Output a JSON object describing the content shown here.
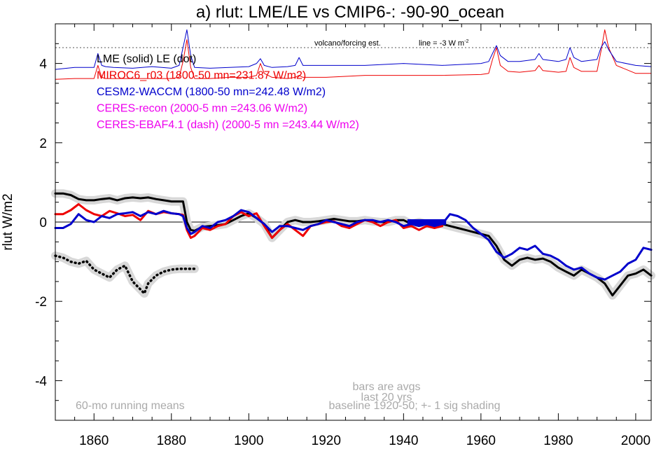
{
  "chart_data": {
    "type": "line",
    "title": "a) rlut: LME/LE vs CMIP6-: -90-90_ocean",
    "xlabel": "",
    "ylabel": "rlut W/m2",
    "xlim": [
      1850,
      2004
    ],
    "ylim": [
      -5,
      5
    ],
    "x_ticks": [
      "1860",
      "1880",
      "1900",
      "1920",
      "1940",
      "1960",
      "1980",
      "2000"
    ],
    "y_ticks": [
      "4",
      "2",
      "0",
      "-2",
      "-4"
    ],
    "zero_line": 0,
    "legend": [
      {
        "text": "LME (solid)   LE (dot)",
        "color": "#000000"
      },
      {
        "text": "MIROC6_r03 (1800-50 mn=231.87 W/m2)",
        "color": "#ee0000"
      },
      {
        "text": "CESM2-WACCM (1800-50 mn=242.48 W/m2)",
        "color": "#0000cc"
      },
      {
        "text": "CERES-recon (2000-5 mn =243.06 W/m2)",
        "color": "#ee00ee"
      },
      {
        "text": "CERES-EBAF4.1 (dash) (2000-5 mn =243.44 W/m2)",
        "color": "#ee00ee"
      }
    ],
    "annotations": {
      "volcano": "volcano/forcing est.",
      "line_note": "line = -3 W m",
      "line_note_sup": "-2",
      "running_mean": "60-mo running means",
      "bars_line1": "bars are avgs",
      "bars_line2": "last 20 yrs",
      "baseline": "baseline 1920-50; +- 1 sig shading"
    },
    "volcano_ref_y": 4.4,
    "baseline_bar": {
      "x": [
        1941,
        1951
      ],
      "y": 0,
      "color": "#0000cc"
    },
    "series": [
      {
        "name": "LME (solid)",
        "color": "#000000",
        "shading": true,
        "x": [
          1850,
          1852,
          1854,
          1856,
          1858,
          1860,
          1862,
          1864,
          1866,
          1868,
          1870,
          1872,
          1874,
          1876,
          1878,
          1880,
          1882,
          1883,
          1884,
          1885,
          1886,
          1888,
          1890,
          1892,
          1894,
          1896,
          1898,
          1900,
          1902,
          1904,
          1906,
          1908,
          1910,
          1912,
          1914,
          1916,
          1918,
          1920,
          1922,
          1924,
          1926,
          1928,
          1930,
          1932,
          1934,
          1936,
          1938,
          1940,
          1942,
          1944,
          1946,
          1948,
          1950,
          1952,
          1954,
          1956,
          1958,
          1960,
          1962,
          1964,
          1966,
          1968,
          1970,
          1972,
          1974,
          1976,
          1978,
          1980,
          1982,
          1984,
          1986,
          1988,
          1990,
          1992,
          1994,
          1996,
          1998,
          2000,
          2002,
          2004
        ],
        "y": [
          0.72,
          0.72,
          0.68,
          0.58,
          0.55,
          0.55,
          0.58,
          0.6,
          0.55,
          0.6,
          0.62,
          0.6,
          0.62,
          0.58,
          0.55,
          0.52,
          0.52,
          0.52,
          0.0,
          -0.2,
          -0.22,
          -0.12,
          -0.1,
          -0.08,
          -0.05,
          0.05,
          0.15,
          0.22,
          0.1,
          -0.05,
          -0.4,
          -0.2,
          0.0,
          0.05,
          0.0,
          0.0,
          0.02,
          0.05,
          0.08,
          0.05,
          0.02,
          0.02,
          0.05,
          0.02,
          0.0,
          0.0,
          0.05,
          0.05,
          -0.05,
          0.0,
          -0.05,
          -0.05,
          -0.05,
          -0.1,
          -0.15,
          -0.2,
          -0.25,
          -0.3,
          -0.35,
          -0.6,
          -0.95,
          -1.1,
          -0.95,
          -0.9,
          -0.95,
          -0.92,
          -1.0,
          -1.15,
          -1.25,
          -1.35,
          -1.2,
          -1.3,
          -1.4,
          -1.55,
          -1.85,
          -1.6,
          -1.35,
          -1.3,
          -1.2,
          -1.35
        ]
      },
      {
        "name": "MIROC6_r03",
        "color": "#ee0000",
        "shading": false,
        "x": [
          1850,
          1852,
          1854,
          1856,
          1858,
          1860,
          1862,
          1864,
          1866,
          1868,
          1870,
          1872,
          1874,
          1876,
          1878,
          1880,
          1882,
          1883,
          1884,
          1885,
          1886,
          1888,
          1890,
          1892,
          1894,
          1896,
          1898,
          1900,
          1902,
          1904,
          1906,
          1908,
          1910,
          1912,
          1914,
          1916,
          1918,
          1920,
          1922,
          1924,
          1926,
          1928,
          1930,
          1932,
          1934,
          1936,
          1938,
          1940,
          1942,
          1944,
          1946,
          1948,
          1950
        ],
        "y": [
          0.2,
          0.2,
          0.3,
          0.45,
          0.3,
          0.2,
          0.15,
          0.28,
          0.22,
          0.15,
          0.18,
          0.05,
          0.28,
          0.2,
          0.25,
          0.22,
          0.2,
          0.18,
          -0.2,
          -0.4,
          -0.35,
          -0.15,
          -0.2,
          -0.1,
          -0.05,
          0.15,
          0.25,
          0.15,
          0.22,
          -0.1,
          -0.4,
          -0.2,
          -0.05,
          -0.2,
          -0.35,
          -0.1,
          -0.05,
          0.0,
          0.02,
          -0.1,
          -0.15,
          -0.05,
          0.05,
          0.0,
          -0.1,
          0.0,
          0.05,
          -0.15,
          -0.1,
          -0.2,
          -0.1,
          -0.15,
          -0.1
        ]
      },
      {
        "name": "CESM2-WACCM",
        "color": "#0000cc",
        "shading": false,
        "x": [
          1850,
          1852,
          1854,
          1856,
          1858,
          1860,
          1862,
          1864,
          1866,
          1868,
          1870,
          1872,
          1874,
          1876,
          1878,
          1880,
          1882,
          1883,
          1884,
          1885,
          1886,
          1888,
          1890,
          1892,
          1894,
          1896,
          1898,
          1900,
          1902,
          1904,
          1906,
          1908,
          1910,
          1912,
          1914,
          1916,
          1918,
          1920,
          1922,
          1924,
          1926,
          1928,
          1930,
          1932,
          1934,
          1936,
          1938,
          1940,
          1942,
          1944,
          1946,
          1948,
          1950,
          1952,
          1954,
          1956,
          1958,
          1960,
          1962,
          1964,
          1966,
          1968,
          1970,
          1972,
          1974,
          1976,
          1978,
          1980,
          1982,
          1984,
          1986,
          1988,
          1990,
          1992,
          1994,
          1996,
          1998,
          2000,
          2002,
          2004
        ],
        "y": [
          -0.15,
          -0.15,
          -0.05,
          0.2,
          0.05,
          0.0,
          0.15,
          0.1,
          0.2,
          0.22,
          0.25,
          0.15,
          0.25,
          0.2,
          0.28,
          0.22,
          0.2,
          0.15,
          -0.15,
          -0.3,
          -0.25,
          -0.1,
          -0.15,
          0.0,
          0.05,
          0.15,
          0.3,
          0.25,
          0.1,
          -0.05,
          -0.25,
          -0.1,
          -0.1,
          -0.15,
          -0.2,
          -0.1,
          -0.05,
          0.05,
          0.0,
          -0.05,
          -0.1,
          0.0,
          0.05,
          0.05,
          0.0,
          0.05,
          0.0,
          -0.1,
          -0.05,
          -0.1,
          -0.05,
          -0.1,
          -0.05,
          0.2,
          0.15,
          0.05,
          -0.15,
          -0.3,
          -0.45,
          -0.75,
          -0.9,
          -0.8,
          -0.65,
          -0.7,
          -0.6,
          -0.8,
          -0.85,
          -0.95,
          -1.1,
          -1.2,
          -1.15,
          -1.3,
          -1.4,
          -1.45,
          -1.35,
          -1.25,
          -1.05,
          -0.95,
          -0.65,
          -0.7
        ]
      },
      {
        "name": "LE (dot)",
        "color": "#000000",
        "style": "dotted",
        "shading": true,
        "x": [
          1850,
          1852,
          1854,
          1856,
          1858,
          1860,
          1862,
          1864,
          1866,
          1868,
          1870,
          1872,
          1873,
          1874,
          1876,
          1878,
          1880,
          1882,
          1884,
          1886
        ],
        "y": [
          -0.85,
          -0.9,
          -1.0,
          -1.05,
          -0.98,
          -1.2,
          -1.3,
          -1.4,
          -1.2,
          -1.1,
          -1.5,
          -1.7,
          -1.8,
          -1.55,
          -1.35,
          -1.25,
          -1.2,
          -1.18,
          -1.18,
          -1.18
        ]
      },
      {
        "name": "MIROC6 forcing",
        "color": "#ee0000",
        "thin": true,
        "x": [
          1850,
          1855,
          1860,
          1861,
          1862,
          1863,
          1865,
          1870,
          1875,
          1880,
          1882,
          1883,
          1884,
          1885,
          1886,
          1890,
          1895,
          1900,
          1902,
          1903,
          1904,
          1906,
          1910,
          1912,
          1913,
          1914,
          1920,
          1930,
          1940,
          1950,
          1960,
          1962,
          1963,
          1964,
          1965,
          1967,
          1970,
          1974,
          1975,
          1976,
          1980,
          1982,
          1983,
          1984,
          1986,
          1990,
          1991,
          1992,
          1993,
          1995,
          2000,
          2004
        ],
        "y": [
          3.6,
          3.62,
          3.62,
          3.95,
          3.65,
          3.62,
          3.62,
          3.62,
          3.62,
          3.62,
          3.65,
          4.05,
          4.6,
          3.9,
          3.62,
          3.62,
          3.65,
          3.65,
          3.7,
          4.0,
          3.75,
          3.65,
          3.62,
          3.65,
          3.7,
          3.65,
          3.65,
          3.7,
          3.7,
          3.7,
          3.72,
          3.75,
          4.1,
          4.4,
          3.95,
          3.8,
          3.78,
          3.82,
          3.95,
          3.82,
          3.78,
          3.8,
          4.15,
          3.9,
          3.8,
          3.8,
          4.3,
          4.85,
          4.4,
          3.95,
          3.75,
          3.75
        ]
      },
      {
        "name": "CESM2 forcing",
        "color": "#0000cc",
        "thin": true,
        "x": [
          1850,
          1855,
          1860,
          1861,
          1862,
          1863,
          1865,
          1870,
          1875,
          1880,
          1882,
          1883,
          1884,
          1885,
          1886,
          1890,
          1895,
          1900,
          1902,
          1903,
          1904,
          1906,
          1910,
          1912,
          1913,
          1914,
          1920,
          1930,
          1940,
          1950,
          1960,
          1962,
          1963,
          1964,
          1965,
          1967,
          1970,
          1974,
          1975,
          1976,
          1980,
          1982,
          1983,
          1984,
          1986,
          1990,
          1991,
          1992,
          1993,
          1995,
          2000,
          2004
        ],
        "y": [
          3.85,
          3.9,
          3.9,
          4.25,
          3.95,
          3.92,
          3.9,
          3.88,
          3.92,
          3.88,
          3.95,
          4.4,
          4.85,
          4.2,
          3.9,
          3.88,
          3.9,
          3.92,
          4.0,
          4.12,
          3.95,
          3.9,
          3.92,
          3.95,
          4.15,
          3.95,
          3.95,
          3.95,
          4.0,
          3.95,
          4.0,
          4.05,
          4.25,
          4.45,
          4.2,
          4.05,
          4.05,
          4.1,
          4.25,
          4.1,
          4.05,
          4.1,
          4.4,
          4.15,
          4.05,
          4.1,
          4.4,
          4.55,
          4.35,
          4.05,
          3.95,
          3.92
        ]
      }
    ]
  }
}
